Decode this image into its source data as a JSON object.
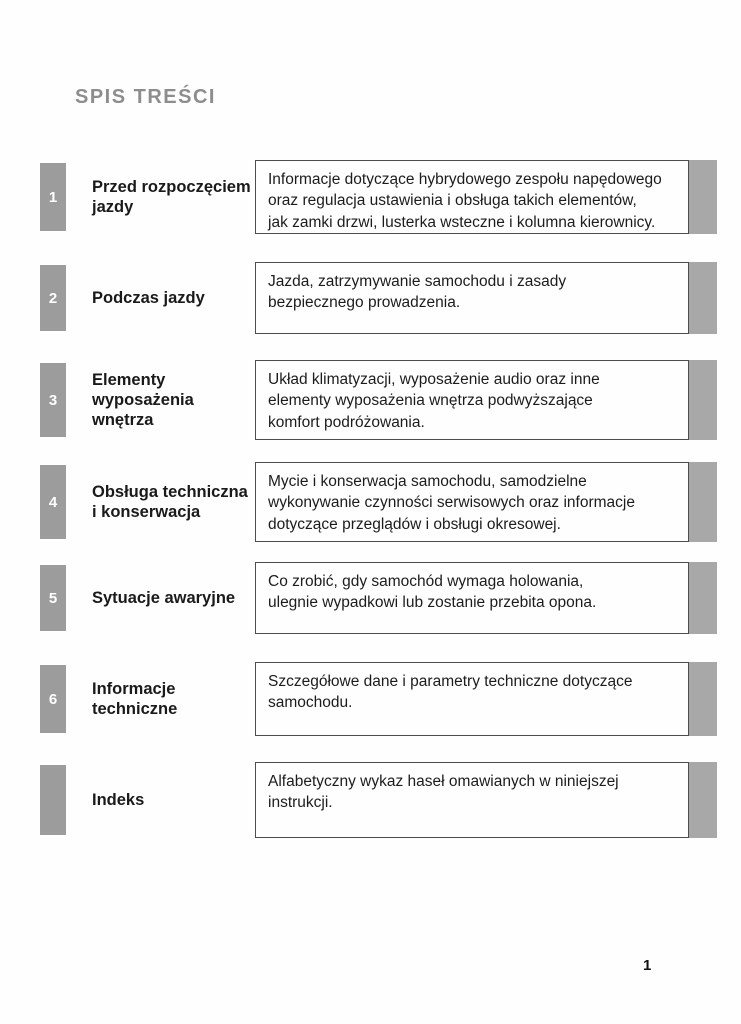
{
  "page": {
    "title": "SPIS TREŚCI",
    "page_number": "1"
  },
  "colors": {
    "tab_gray": "#9c9c9c",
    "end_strip_gray": "#a8a8a8",
    "title_gray": "#8d8d8d",
    "box_border": "#4d4d4d",
    "text_dark": "#1c1c1c"
  },
  "toc": {
    "rows": [
      {
        "number": "1",
        "label": "Przed rozpoczęciem\njazdy",
        "description": "Informacje dotyczące hybrydowego zespołu napędowego\noraz regulacja ustawienia i obsługa takich elementów,\njak zamki drzwi, lusterka wsteczne i kolumna kierownicy."
      },
      {
        "number": "2",
        "label": "Podczas jazdy",
        "description": "Jazda, zatrzymywanie samochodu i zasady\nbezpiecznego prowadzenia."
      },
      {
        "number": "3",
        "label": "Elementy\nwyposażenia wnętrza",
        "description": "Układ klimatyzacji, wyposażenie audio oraz inne\nelementy wyposażenia wnętrza podwyższające\nkomfort podróżowania."
      },
      {
        "number": "4",
        "label": "Obsługa techniczna\ni konserwacja",
        "description": "Mycie i konserwacja samochodu, samodzielne\nwykonywanie czynności serwisowych oraz informacje\ndotyczące przeglądów i obsługi okresowej."
      },
      {
        "number": "5",
        "label": "Sytuacje awaryjne",
        "description": "Co zrobić, gdy samochód wymaga holowania,\nulegnie wypadkowi lub zostanie przebita opona."
      },
      {
        "number": "6",
        "label": "Informacje techniczne",
        "description": "Szczegółowe dane i parametry techniczne dotyczące\nsamochodu."
      },
      {
        "number": "",
        "label": "Indeks",
        "description": "Alfabetyczny wykaz haseł omawianych w niniejszej\ninstrukcji."
      }
    ]
  }
}
